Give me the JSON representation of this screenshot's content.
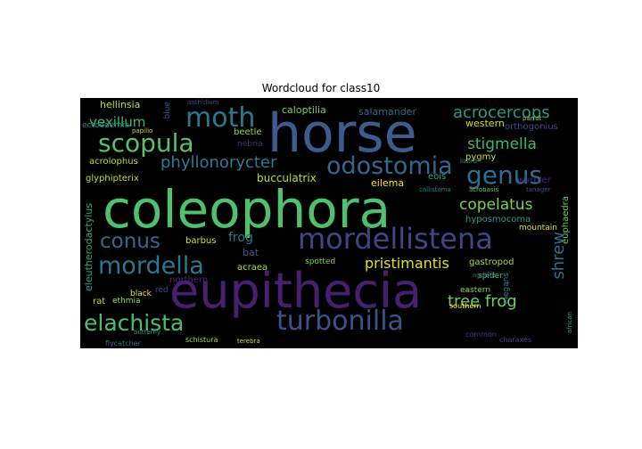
{
  "figure": {
    "title": "Wordcloud for class10"
  },
  "palette": {
    "background": "#000000",
    "figure_bg": "#ffffff"
  },
  "words": [
    "coleophora",
    "eupithecia",
    "horse",
    "mordellistena",
    "turbonilla",
    "odostomia",
    "moth",
    "scopula",
    "mordella",
    "conus",
    "elachista",
    "genus",
    "acrocercops",
    "phyllonorycter",
    "stigmella",
    "copelatus",
    "pristimantis",
    "tree frog",
    "shrew",
    "vexillum",
    "hellinsia",
    "ectoedemia",
    "acrolophus",
    "caloptilia",
    "salamander",
    "western",
    "orthogonius",
    "pygmy",
    "eois",
    "eilema",
    "bucculatrix",
    "beetle",
    "nebria",
    "hyposmocoma",
    "mountain",
    "frog",
    "bat",
    "barbus",
    "acraea",
    "spotted",
    "northern",
    "gastropod",
    "eleutherodactylus",
    "glyphipterix",
    "rat",
    "ethmia",
    "black",
    "red",
    "eastern",
    "elegans",
    "spider",
    "southern",
    "schistura",
    "euphaedra",
    "warbler",
    "common",
    "charaxes",
    "flycatcher",
    "butterfly",
    "terebra",
    "blue",
    "anthidium",
    "callistoma",
    "tanager",
    "acrobasis",
    "lizard",
    "papilio",
    "african",
    "agdistis",
    "parrot"
  ]
}
